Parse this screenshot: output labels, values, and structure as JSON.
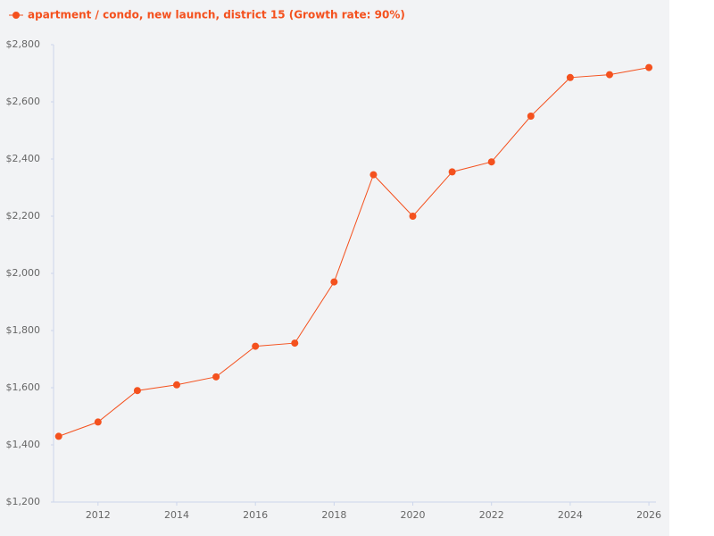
{
  "chart_data": {
    "type": "line",
    "x": [
      2011,
      2012,
      2013,
      2014,
      2015,
      2016,
      2017,
      2018,
      2019,
      2020,
      2021,
      2022,
      2023,
      2024,
      2025,
      2026
    ],
    "series": [
      {
        "name": "apartment / condo, new launch, district 15 (Growth rate: 90%)",
        "color": "#f4511e",
        "values": [
          1430,
          1480,
          1590,
          1610,
          1638,
          1745,
          1756,
          1970,
          2345,
          2200,
          2355,
          2390,
          2550,
          2685,
          2695,
          2720
        ]
      }
    ],
    "xlim": [
      2010.87,
      2026.18
    ],
    "xticks": [
      2012,
      2014,
      2016,
      2018,
      2020,
      2022,
      2024,
      2026
    ],
    "ylim": [
      1200,
      2800
    ],
    "yticks": [
      {
        "value": 1200,
        "label": "$1,200"
      },
      {
        "value": 1400,
        "label": "$1,400"
      },
      {
        "value": 1600,
        "label": "$1,600"
      },
      {
        "value": 1800,
        "label": "$1,800"
      },
      {
        "value": 2000,
        "label": "$2,000"
      },
      {
        "value": 2200,
        "label": "$2,200"
      },
      {
        "value": 2400,
        "label": "$2,400"
      },
      {
        "value": 2600,
        "label": "$2,600"
      },
      {
        "value": 2800,
        "label": "$2,800"
      }
    ],
    "grid": false,
    "legend": "top-left"
  }
}
